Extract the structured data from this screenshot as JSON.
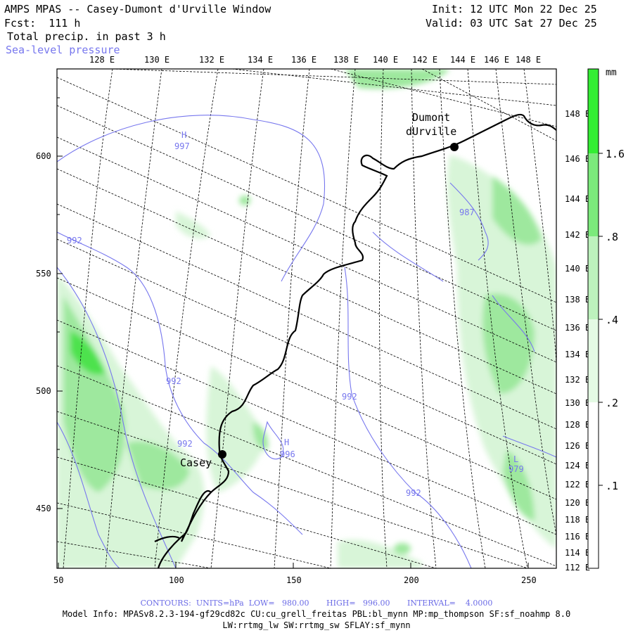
{
  "header": {
    "title": "AMPS MPAS -- Casey-Dumont d'Urville Window",
    "forecast": "Fcst:  111 h",
    "field": "Total precip. in past 3 h",
    "overlay": "Sea-level pressure",
    "init": "Init: 12 UTC Mon 22 Dec 25",
    "valid": "Valid: 03 UTC Sat 27 Dec 25"
  },
  "map": {
    "top_lon_labels": [
      "128 E",
      "130 E",
      "132 E",
      "134 E",
      "136 E",
      "138 E",
      "140 E",
      "142 E",
      "144 E",
      "146 E",
      "148 E"
    ],
    "right_lon_labels": [
      "148 E",
      "146 E",
      "144 E",
      "142 E",
      "140 E",
      "138 E",
      "136 E",
      "134 E",
      "132 E",
      "130 E",
      "128 E",
      "126 E",
      "124 E",
      "122 E",
      "120 E",
      "118 E",
      "116 E",
      "114 E",
      "112 E"
    ],
    "left_y_labels": [
      "600",
      "550",
      "500",
      "450"
    ],
    "bottom_x_labels": [
      "50",
      "100",
      "150",
      "200",
      "250"
    ],
    "stations": [
      {
        "name_line1": "Dumont",
        "name_line2": "dUrville"
      },
      {
        "name_line1": "Casey",
        "name_line2": ""
      }
    ],
    "pressure_labels": [
      "997",
      "992",
      "992",
      "992",
      "996",
      "992",
      "987",
      "979",
      "992"
    ],
    "pressure_marks": [
      "H",
      "H",
      "L"
    ]
  },
  "colorbar": {
    "unit": "mm",
    "labels": [
      "1.6",
      ".8",
      ".4",
      ".2",
      ".1"
    ],
    "colors": [
      "#33ee33",
      "#7cea7c",
      "#bdf2bd",
      "#e4fae4",
      "#ffffff"
    ]
  },
  "footer": {
    "contours": "CONTOURS:  UNITS=hPa  LOW=   980.00       HIGH=   996.00       INTERVAL=    4.0000",
    "model_info": "Model Info: MPASv8.2.3-194-gf29cd82c CU:cu_grell_freitas PBL:bl_mynn MP:mp_thompson SF:sf_noahmp 8.0",
    "model_info2": "LW:rrtmg_lw SW:rrtmg_sw SFLAY:sf_mynn"
  },
  "colors": {
    "contour": "#7777ee",
    "precip_light": "#d8f5d8",
    "precip_mid": "#9ee89e",
    "precip_high": "#4ee24e"
  }
}
